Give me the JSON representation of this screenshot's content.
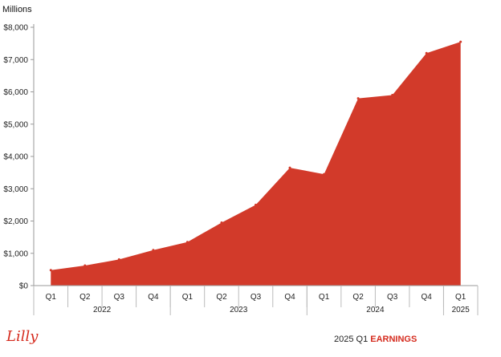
{
  "chart_data": {
    "type": "area",
    "ylabel": "Millions",
    "ylim": [
      0,
      8000
    ],
    "yticks": [
      0,
      1000,
      2000,
      3000,
      4000,
      5000,
      6000,
      7000,
      8000
    ],
    "ytick_labels": [
      "$0",
      "$1,000",
      "$2,000",
      "$3,000",
      "$4,000",
      "$5,000",
      "$6,000",
      "$7,000",
      "$8,000"
    ],
    "categories": [
      "Q1",
      "Q2",
      "Q3",
      "Q4",
      "Q1",
      "Q2",
      "Q3",
      "Q4",
      "Q1",
      "Q2",
      "Q3",
      "Q4",
      "Q1"
    ],
    "years": [
      {
        "label": "2022",
        "count": 4
      },
      {
        "label": "2023",
        "count": 4
      },
      {
        "label": "2024",
        "count": 4
      },
      {
        "label": "2025",
        "count": 1
      }
    ],
    "values": [
      480,
      620,
      810,
      1100,
      1350,
      1950,
      2500,
      3650,
      3450,
      5800,
      5900,
      7200,
      7550
    ],
    "color": "#d23a2a",
    "grid": false,
    "legend": "none"
  },
  "footer": {
    "logo": "Lilly",
    "report_prefix": "2025 Q1 ",
    "report_suffix": "EARNINGS",
    "accent_color": "#d52b1e"
  }
}
